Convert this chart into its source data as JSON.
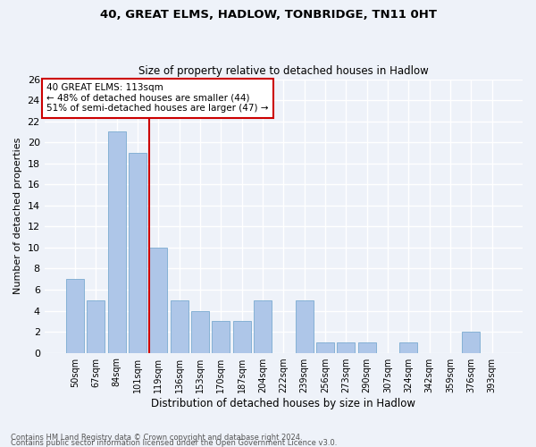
{
  "title1": "40, GREAT ELMS, HADLOW, TONBRIDGE, TN11 0HT",
  "title2": "Size of property relative to detached houses in Hadlow",
  "xlabel": "Distribution of detached houses by size in Hadlow",
  "ylabel": "Number of detached properties",
  "categories": [
    "50sqm",
    "67sqm",
    "84sqm",
    "101sqm",
    "119sqm",
    "136sqm",
    "153sqm",
    "170sqm",
    "187sqm",
    "204sqm",
    "222sqm",
    "239sqm",
    "256sqm",
    "273sqm",
    "290sqm",
    "307sqm",
    "324sqm",
    "342sqm",
    "359sqm",
    "376sqm",
    "393sqm"
  ],
  "values": [
    7,
    5,
    21,
    19,
    10,
    5,
    4,
    3,
    3,
    5,
    0,
    5,
    1,
    1,
    1,
    0,
    1,
    0,
    0,
    2,
    0
  ],
  "bar_color": "#aec6e8",
  "bar_edge_color": "#7aaad0",
  "vline_color": "#cc0000",
  "annotation_text": "40 GREAT ELMS: 113sqm\n← 48% of detached houses are smaller (44)\n51% of semi-detached houses are larger (47) →",
  "annotation_box_color": "#ffffff",
  "annotation_box_edge_color": "#cc0000",
  "ylim": [
    0,
    26
  ],
  "yticks": [
    0,
    2,
    4,
    6,
    8,
    10,
    12,
    14,
    16,
    18,
    20,
    22,
    24,
    26
  ],
  "footer1": "Contains HM Land Registry data © Crown copyright and database right 2024.",
  "footer2": "Contains public sector information licensed under the Open Government Licence v3.0.",
  "bg_color": "#eef2f9",
  "grid_color": "#ffffff"
}
